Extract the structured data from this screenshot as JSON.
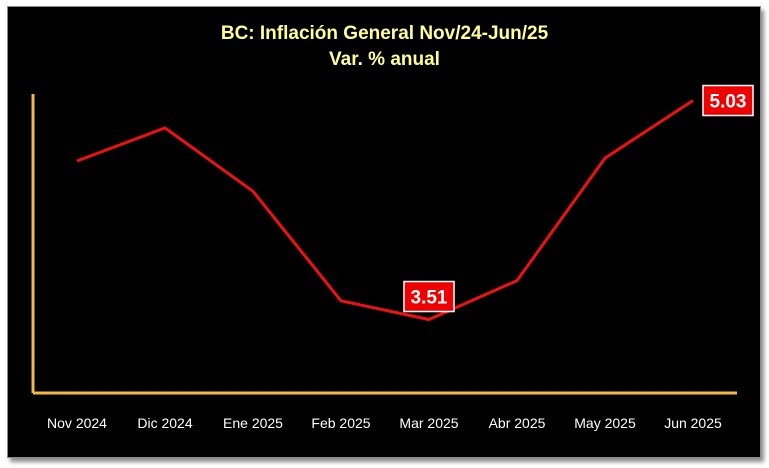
{
  "chart_data": {
    "type": "line",
    "title": "BC: Inflación General Nov/24-Jun/25",
    "subtitle": "Var. % anual",
    "categories": [
      "Nov 2024",
      "Dic 2024",
      "Ene 2025",
      "Feb 2025",
      "Mar 2025",
      "Abr 2025",
      "May 2025",
      "Jun 2025"
    ],
    "series": [
      {
        "values": [
          4.61,
          4.84,
          4.4,
          3.64,
          3.51,
          3.78,
          4.63,
          5.03
        ]
      }
    ],
    "data_labels": [
      {
        "index": 4,
        "text": "3.51"
      },
      {
        "index": 7,
        "text": "5.03"
      }
    ],
    "ylim": [
      3.0,
      5.45
    ],
    "grid": false,
    "legend": "none",
    "colors": {
      "line": "#ee1111",
      "label_bg": "#ee0000",
      "axis": "#f5b841",
      "title": "#ffff99",
      "background": "#000000",
      "tick_text": "#ffffff"
    }
  }
}
